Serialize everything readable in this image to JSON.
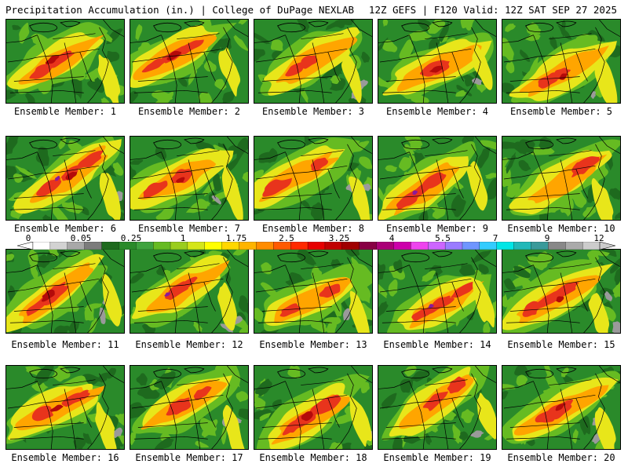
{
  "header": {
    "left": "Precipitation Accumulation (in.) | College of DuPage NEXLAB",
    "right": "12Z GEFS | F120 Valid: 12Z SAT SEP 27 2025"
  },
  "panels": [
    {
      "member": 1,
      "label": "Ensemble Member: 1"
    },
    {
      "member": 2,
      "label": "Ensemble Member: 2"
    },
    {
      "member": 3,
      "label": "Ensemble Member: 3"
    },
    {
      "member": 4,
      "label": "Ensemble Member: 4"
    },
    {
      "member": 5,
      "label": "Ensemble Member: 5"
    },
    {
      "member": 6,
      "label": "Ensemble Member: 6"
    },
    {
      "member": 7,
      "label": "Ensemble Member: 7"
    },
    {
      "member": 8,
      "label": "Ensemble Member: 8"
    },
    {
      "member": 9,
      "label": "Ensemble Member: 9"
    },
    {
      "member": 10,
      "label": "Ensemble Member: 10"
    },
    {
      "member": 11,
      "label": "Ensemble Member: 11"
    },
    {
      "member": 12,
      "label": "Ensemble Member: 12"
    },
    {
      "member": 13,
      "label": "Ensemble Member: 13"
    },
    {
      "member": 14,
      "label": "Ensemble Member: 14"
    },
    {
      "member": 15,
      "label": "Ensemble Member: 15"
    },
    {
      "member": 16,
      "label": "Ensemble Member: 16"
    },
    {
      "member": 17,
      "label": "Ensemble Member: 17"
    },
    {
      "member": 18,
      "label": "Ensemble Member: 18"
    },
    {
      "member": 19,
      "label": "Ensemble Member: 19"
    },
    {
      "member": 20,
      "label": "Ensemble Member: 20"
    }
  ],
  "legend": {
    "unit": "in.",
    "ticks": [
      "0",
      "0.05",
      "0.25",
      "1",
      "1.75",
      "2.5",
      "3.25",
      "4",
      "5.5",
      "7",
      "9",
      "12"
    ],
    "colors": [
      "#ffffff",
      "#d2d2d2",
      "#a8a8a8",
      "#7c7c7c",
      "#1e6a1e",
      "#2a8a2a",
      "#3ea33e",
      "#66bb22",
      "#9acd1e",
      "#d4e61a",
      "#ffff00",
      "#ffd700",
      "#ffb400",
      "#ff8c00",
      "#ff5a00",
      "#ff2a00",
      "#e60000",
      "#c00000",
      "#a00000",
      "#880044",
      "#aa0077",
      "#cc00aa",
      "#ee44ee",
      "#cc66ff",
      "#9a7cff",
      "#6f96ff",
      "#33ccff",
      "#00e6e6",
      "#22b8b8",
      "#3a9a9a",
      "#888888",
      "#aaaaaa",
      "#cccccc"
    ]
  },
  "map_colors": {
    "background": "#2a8a2a",
    "dark_green": "#1e6a1e",
    "light_green": "#66bb22",
    "yellow": "#e8e61a",
    "orange": "#ffa500",
    "red": "#e8341c",
    "dark_red": "#b40a0a",
    "purple": "#8a1a9a",
    "gray": "#9a9a9a",
    "borders": "#000000"
  }
}
